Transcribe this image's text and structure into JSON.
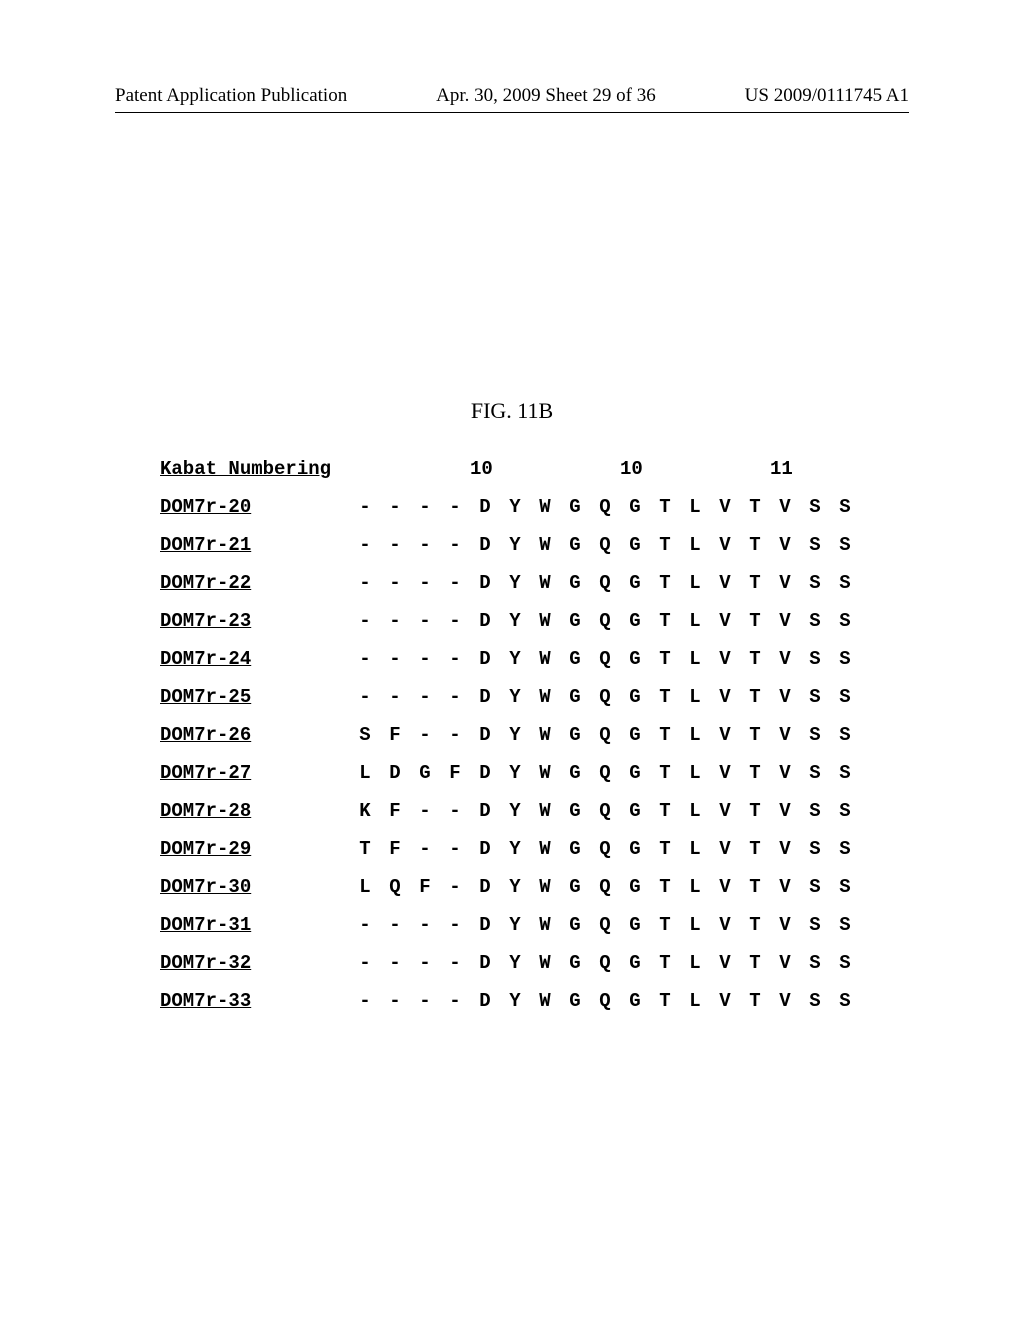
{
  "header": {
    "left": "Patent Application Publication",
    "center": "Apr. 30, 2009  Sheet 29 of 36",
    "right": "US 2009/0111745 A1"
  },
  "figure_title": "FIG. 11B",
  "numbering_label": "Kabat_Numbering",
  "numbering_positions": {
    "4": "10",
    "9": "10",
    "14": "11"
  },
  "rows": [
    {
      "label": "DOM7r-20",
      "seq": [
        "-",
        "-",
        "-",
        "-",
        "D",
        "Y",
        "W",
        "G",
        "Q",
        "G",
        "T",
        "L",
        "V",
        "T",
        "V",
        "S",
        "S"
      ]
    },
    {
      "label": "DOM7r-21",
      "seq": [
        "-",
        "-",
        "-",
        "-",
        "D",
        "Y",
        "W",
        "G",
        "Q",
        "G",
        "T",
        "L",
        "V",
        "T",
        "V",
        "S",
        "S"
      ]
    },
    {
      "label": "DOM7r-22",
      "seq": [
        "-",
        "-",
        "-",
        "-",
        "D",
        "Y",
        "W",
        "G",
        "Q",
        "G",
        "T",
        "L",
        "V",
        "T",
        "V",
        "S",
        "S"
      ]
    },
    {
      "label": "DOM7r-23",
      "seq": [
        "-",
        "-",
        "-",
        "-",
        "D",
        "Y",
        "W",
        "G",
        "Q",
        "G",
        "T",
        "L",
        "V",
        "T",
        "V",
        "S",
        "S"
      ]
    },
    {
      "label": "DOM7r-24",
      "seq": [
        "-",
        "-",
        "-",
        "-",
        "D",
        "Y",
        "W",
        "G",
        "Q",
        "G",
        "T",
        "L",
        "V",
        "T",
        "V",
        "S",
        "S"
      ]
    },
    {
      "label": "DOM7r-25",
      "seq": [
        "-",
        "-",
        "-",
        "-",
        "D",
        "Y",
        "W",
        "G",
        "Q",
        "G",
        "T",
        "L",
        "V",
        "T",
        "V",
        "S",
        "S"
      ]
    },
    {
      "label": "DOM7r-26",
      "seq": [
        "S",
        "F",
        "-",
        "-",
        "D",
        "Y",
        "W",
        "G",
        "Q",
        "G",
        "T",
        "L",
        "V",
        "T",
        "V",
        "S",
        "S"
      ]
    },
    {
      "label": "DOM7r-27",
      "seq": [
        "L",
        "D",
        "G",
        "F",
        "D",
        "Y",
        "W",
        "G",
        "Q",
        "G",
        "T",
        "L",
        "V",
        "T",
        "V",
        "S",
        "S"
      ]
    },
    {
      "label": "DOM7r-28",
      "seq": [
        "K",
        "F",
        "-",
        "-",
        "D",
        "Y",
        "W",
        "G",
        "Q",
        "G",
        "T",
        "L",
        "V",
        "T",
        "V",
        "S",
        "S"
      ]
    },
    {
      "label": "DOM7r-29",
      "seq": [
        "T",
        "F",
        "-",
        "-",
        "D",
        "Y",
        "W",
        "G",
        "Q",
        "G",
        "T",
        "L",
        "V",
        "T",
        "V",
        "S",
        "S"
      ]
    },
    {
      "label": "DOM7r-30",
      "seq": [
        "L",
        "Q",
        "F",
        "-",
        "D",
        "Y",
        "W",
        "G",
        "Q",
        "G",
        "T",
        "L",
        "V",
        "T",
        "V",
        "S",
        "S"
      ]
    },
    {
      "label": "DOM7r-31",
      "seq": [
        "-",
        "-",
        "-",
        "-",
        "D",
        "Y",
        "W",
        "G",
        "Q",
        "G",
        "T",
        "L",
        "V",
        "T",
        "V",
        "S",
        "S"
      ]
    },
    {
      "label": "DOM7r-32",
      "seq": [
        "-",
        "-",
        "-",
        "-",
        "D",
        "Y",
        "W",
        "G",
        "Q",
        "G",
        "T",
        "L",
        "V",
        "T",
        "V",
        "S",
        "S"
      ]
    },
    {
      "label": "DOM7r-33",
      "seq": [
        "-",
        "-",
        "-",
        "-",
        "D",
        "Y",
        "W",
        "G",
        "Q",
        "G",
        "T",
        "L",
        "V",
        "T",
        "V",
        "S",
        "S"
      ]
    }
  ],
  "seq_length": 17
}
